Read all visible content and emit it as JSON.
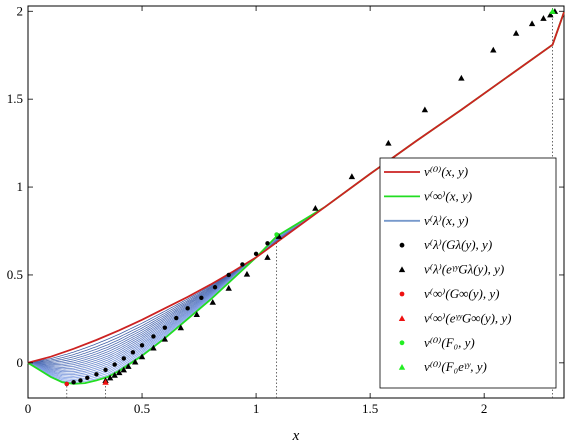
{
  "chart_data": {
    "type": "line",
    "xlabel": "x",
    "ylabel": "",
    "xlim": [
      0,
      2.35
    ],
    "ylim": [
      -0.2,
      2.03
    ],
    "grid": false,
    "legend_placement": "right",
    "xticks": [
      "0",
      "0.5",
      "1",
      "1.5",
      "2"
    ],
    "yticks": [
      "0",
      "0.5",
      "1",
      "1.5",
      "2"
    ],
    "vlines": [
      0.17,
      0.34,
      1.09,
      2.3
    ],
    "legend": [
      {
        "label": "v⁽⁰⁾(x, y)",
        "color": "#cc2222",
        "symbol": "line"
      },
      {
        "label": "v⁽∞⁾(x, y)",
        "color": "#22dd22",
        "symbol": "line"
      },
      {
        "label": "v⁽λ⁾(x, y)",
        "color": "#7799cc",
        "symbol": "line"
      },
      {
        "label": "v⁽λ⁾(Gλ(y), y)",
        "color": "#000000",
        "symbol": "dot"
      },
      {
        "label": "v⁽λ⁾(eᵞʸGλ(y), y)",
        "color": "#000000",
        "symbol": "triangle"
      },
      {
        "label": "v⁽∞⁾(G∞(y), y)",
        "color": "#ee1111",
        "symbol": "dot"
      },
      {
        "label": "v⁽∞⁾(eᵞʸG∞(y), y)",
        "color": "#ee1111",
        "symbol": "triangle"
      },
      {
        "label": "v⁽⁰⁾(F₀, y)",
        "color": "#22ee22",
        "symbol": "dot"
      },
      {
        "label": "v⁽⁰⁾(F₀eᵞʸ, y)",
        "color": "#22ee22",
        "symbol": "triangle"
      }
    ],
    "series": [
      {
        "x": [
          0,
          0.1,
          0.2,
          0.3,
          0.4,
          0.5,
          0.6,
          0.7,
          0.8,
          0.9,
          1.0,
          1.1,
          1.3,
          1.5,
          1.7,
          1.9,
          2.1,
          2.3,
          2.35
        ],
        "y": [
          0,
          0.035,
          0.08,
          0.13,
          0.185,
          0.245,
          0.31,
          0.375,
          0.445,
          0.52,
          0.6,
          0.695,
          0.885,
          1.075,
          1.26,
          1.44,
          1.625,
          1.81,
          1.995
        ]
      },
      {
        "x": [
          0,
          0.05,
          0.1,
          0.15,
          0.2,
          0.25,
          0.3,
          0.35,
          0.4,
          0.5,
          0.6,
          0.7,
          0.8,
          0.9,
          1.0,
          1.09,
          1.3,
          1.5,
          1.7,
          1.9,
          2.1,
          2.3,
          2.35
        ],
        "y": [
          0,
          -0.04,
          -0.08,
          -0.11,
          -0.12,
          -0.115,
          -0.1,
          -0.08,
          -0.045,
          0.04,
          0.14,
          0.25,
          0.36,
          0.48,
          0.6,
          0.72,
          0.885,
          1.075,
          1.26,
          1.44,
          1.625,
          1.81,
          1.995
        ]
      }
    ],
    "markers_G_lambda": {
      "x": [
        0.17,
        0.2,
        0.23,
        0.26,
        0.3,
        0.34,
        0.38,
        0.42,
        0.46,
        0.5,
        0.55,
        0.6,
        0.65,
        0.7,
        0.76,
        0.82,
        0.88,
        0.94,
        1.0,
        1.05,
        1.09
      ],
      "y": [
        -0.12,
        -0.11,
        -0.1,
        -0.085,
        -0.065,
        -0.04,
        -0.01,
        0.025,
        0.06,
        0.1,
        0.15,
        0.2,
        0.255,
        0.31,
        0.37,
        0.43,
        0.5,
        0.56,
        0.62,
        0.68,
        0.73
      ]
    },
    "markers_eG_lambda": {
      "x": [
        0.34,
        0.36,
        0.38,
        0.4,
        0.42,
        0.44,
        0.47,
        0.5,
        0.55,
        0.6,
        0.67,
        0.74,
        0.81,
        0.88,
        0.96,
        1.05,
        1.1,
        1.26,
        1.42,
        1.58,
        1.74,
        1.9,
        2.04,
        2.14,
        2.21,
        2.26,
        2.29,
        2.31
      ],
      "y": [
        -0.1,
        -0.085,
        -0.07,
        -0.055,
        -0.04,
        -0.02,
        0.005,
        0.035,
        0.085,
        0.135,
        0.2,
        0.275,
        0.345,
        0.425,
        0.505,
        0.6,
        0.72,
        0.88,
        1.06,
        1.25,
        1.44,
        1.62,
        1.78,
        1.875,
        1.93,
        1.96,
        1.98,
        2.0
      ]
    },
    "red_dots": {
      "x": [
        0.17
      ],
      "y": [
        -0.12
      ]
    },
    "red_triangles": {
      "x": [
        0.34
      ],
      "y": [
        -0.11
      ]
    },
    "green_dots": {
      "x": [
        1.09
      ],
      "y": [
        0.73
      ]
    },
    "green_triangles": {
      "x": [
        2.3
      ],
      "y": [
        2.0
      ]
    }
  }
}
